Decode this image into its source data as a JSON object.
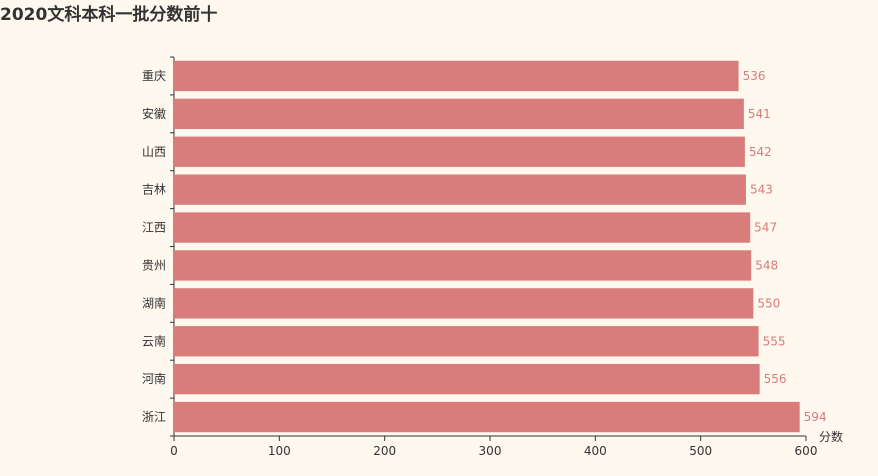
{
  "chart_data": {
    "type": "bar",
    "orientation": "horizontal",
    "title": "2020文科本科一批分数前十",
    "xlabel": "分数",
    "ylabel": "",
    "categories": [
      "重庆",
      "安徽",
      "山西",
      "吉林",
      "江西",
      "贵州",
      "湖南",
      "云南",
      "河南",
      "浙江"
    ],
    "values": [
      536,
      541,
      542,
      543,
      547,
      548,
      550,
      555,
      556,
      594
    ],
    "xlim": [
      0,
      600
    ],
    "xticks": [
      0,
      100,
      200,
      300,
      400,
      500,
      600
    ],
    "grid": false,
    "data_labels": true,
    "bar_color": "#d87c7c",
    "label_color": "#d87c7c",
    "background_color": "#fef8ef"
  }
}
